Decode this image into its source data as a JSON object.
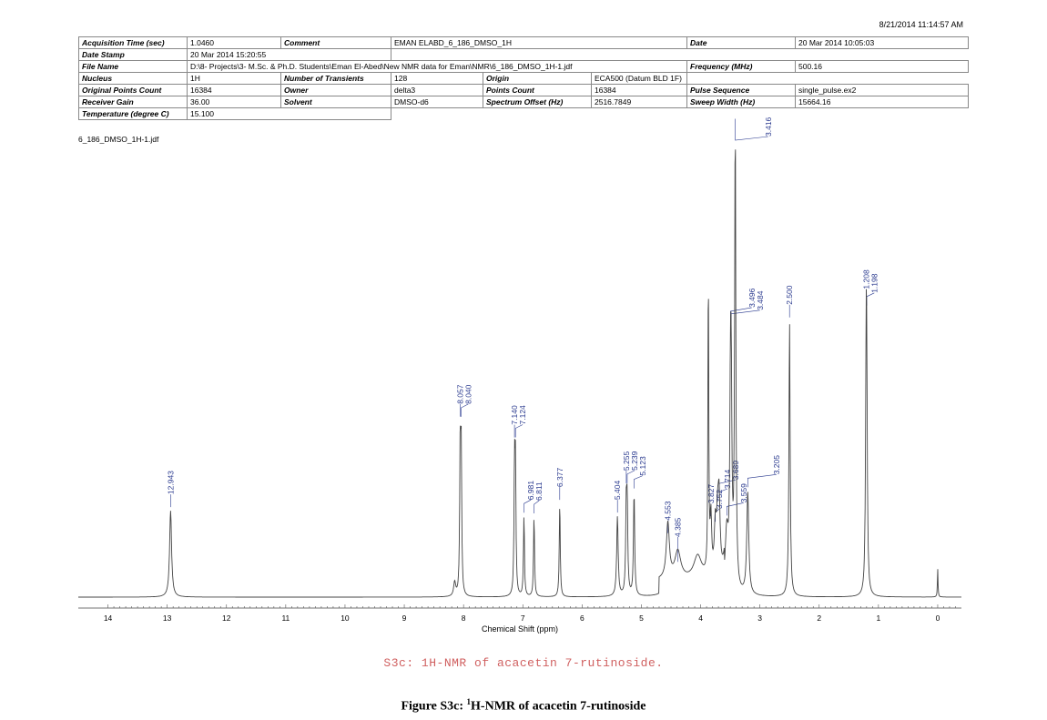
{
  "timestamp": "8/21/2014 11:14:57 AM",
  "params": {
    "acq_time_label": "Acquisition Time (sec)",
    "acq_time": "1.0460",
    "comment_label": "Comment",
    "comment": "EMAN ELABD_6_186_DMSO_1H",
    "date_label": "Date",
    "date": "20 Mar 2014 10:05:03",
    "date_stamp_label": "Date Stamp",
    "date_stamp": "20 Mar 2014 15:20:55",
    "file_name_label": "File Name",
    "file_name": "D:\\8- Projects\\3- M.Sc. & Ph.D. Students\\Eman El-Abed\\New NMR data for Eman\\NMR\\6_186_DMSO_1H-1.jdf",
    "frequency_label": "Frequency (MHz)",
    "frequency": "500.16",
    "nucleus_label": "Nucleus",
    "nucleus": "1H",
    "transients_label": "Number of Transients",
    "transients": "128",
    "origin_label": "Origin",
    "origin": "ECA500 (Datum BLD 1F)",
    "points_orig_label": "Original Points Count",
    "points_orig": "16384",
    "owner_label": "Owner",
    "owner": "delta3",
    "points_label": "Points Count",
    "points": "16384",
    "pulse_label": "Pulse Sequence",
    "pulse": "single_pulse.ex2",
    "gain_label": "Receiver Gain",
    "gain": "36.00",
    "solvent_label": "Solvent",
    "solvent": "DMSO-d6",
    "offset_label": "Spectrum Offset (Hz)",
    "offset": "2516.7849",
    "sweep_label": "Sweep Width (Hz)",
    "sweep": "15664.16",
    "temp_label": "Temperature (degree C)",
    "temp": "15.100"
  },
  "file_label": "6_186_DMSO_1H-1.jdf",
  "chart_data": {
    "type": "line",
    "xlabel": "Chemical Shift (ppm)",
    "xlim": [
      14.5,
      -0.4
    ],
    "x_reversed": true,
    "ticks": [
      "14",
      "13",
      "12",
      "11",
      "10",
      "9",
      "8",
      "7",
      "6",
      "5",
      "4",
      "3",
      "2",
      "1",
      "0"
    ],
    "grid": false,
    "peaks": [
      {
        "ppm": 12.943,
        "h": 0.185,
        "w": 0.02
      },
      {
        "ppm": 8.057,
        "h": 0.3,
        "w": 0.01
      },
      {
        "ppm": 8.04,
        "h": 0.3,
        "w": 0.01
      },
      {
        "ppm": 8.15,
        "h": 0.03,
        "w": 0.02
      },
      {
        "ppm": 7.14,
        "h": 0.26,
        "w": 0.01
      },
      {
        "ppm": 7.124,
        "h": 0.26,
        "w": 0.01
      },
      {
        "ppm": 6.981,
        "h": 0.17,
        "w": 0.01
      },
      {
        "ppm": 6.811,
        "h": 0.17,
        "w": 0.01
      },
      {
        "ppm": 6.377,
        "h": 0.2,
        "w": 0.01
      },
      {
        "ppm": 5.404,
        "h": 0.17,
        "w": 0.015
      },
      {
        "ppm": 5.255,
        "h": 0.17,
        "w": 0.012
      },
      {
        "ppm": 5.239,
        "h": 0.17,
        "w": 0.012
      },
      {
        "ppm": 5.123,
        "h": 0.22,
        "w": 0.012
      },
      {
        "ppm": 4.553,
        "h": 0.12,
        "w": 0.03
      },
      {
        "ppm": 4.385,
        "h": 0.06,
        "w": 0.06
      },
      {
        "ppm": 4.05,
        "h": 0.05,
        "w": 0.08
      },
      {
        "ppm": 3.827,
        "h": 0.12,
        "w": 0.015
      },
      {
        "ppm": 3.752,
        "h": 0.1,
        "w": 0.02
      },
      {
        "ppm": 3.714,
        "h": 0.1,
        "w": 0.02
      },
      {
        "ppm": 3.87,
        "h": 0.66,
        "w": 0.008
      },
      {
        "ppm": 3.689,
        "h": 0.15,
        "w": 0.02
      },
      {
        "ppm": 3.559,
        "h": 0.12,
        "w": 0.03
      },
      {
        "ppm": 3.496,
        "h": 0.34,
        "w": 0.015
      },
      {
        "ppm": 3.484,
        "h": 0.32,
        "w": 0.015
      },
      {
        "ppm": 3.416,
        "h": 0.98,
        "w": 0.012
      },
      {
        "ppm": 3.205,
        "h": 0.22,
        "w": 0.02
      },
      {
        "ppm": 2.5,
        "h": 0.59,
        "w": 0.012
      },
      {
        "ppm": 1.208,
        "h": 0.4,
        "w": 0.012
      },
      {
        "ppm": 1.198,
        "h": 0.38,
        "w": 0.012
      },
      {
        "ppm": 0.0,
        "h": 0.06,
        "w": 0.006
      }
    ],
    "peak_labels": [
      {
        "text": "12.943",
        "ppm": 12.943
      },
      {
        "text": "8.057",
        "ppm": 8.057
      },
      {
        "text": "8.040",
        "ppm": 8.04
      },
      {
        "text": "7.140",
        "ppm": 7.14
      },
      {
        "text": "7.124",
        "ppm": 7.124
      },
      {
        "text": "6.981",
        "ppm": 6.981
      },
      {
        "text": "6.811",
        "ppm": 6.811
      },
      {
        "text": "6.377",
        "ppm": 6.377
      },
      {
        "text": "5.404",
        "ppm": 5.404
      },
      {
        "text": "5.255",
        "ppm": 5.255
      },
      {
        "text": "5.239",
        "ppm": 5.239
      },
      {
        "text": "5.123",
        "ppm": 5.123
      },
      {
        "text": "4.553",
        "ppm": 4.553
      },
      {
        "text": "4.385",
        "ppm": 4.385
      },
      {
        "text": "3.827",
        "ppm": 3.827
      },
      {
        "text": "3.752",
        "ppm": 3.752
      },
      {
        "text": "3.714",
        "ppm": 3.714
      },
      {
        "text": "3.689",
        "ppm": 3.689
      },
      {
        "text": "3.559",
        "ppm": 3.559
      },
      {
        "text": "3.496",
        "ppm": 3.496
      },
      {
        "text": "3.484",
        "ppm": 3.484
      },
      {
        "text": "3.416",
        "ppm": 3.416
      },
      {
        "text": "3.205",
        "ppm": 3.205
      },
      {
        "text": "2.500",
        "ppm": 2.5
      },
      {
        "text": "1.208",
        "ppm": 1.208
      },
      {
        "text": "1.198",
        "ppm": 1.198
      }
    ],
    "colors": {
      "trace": "#444444",
      "label": "#2a3a8f"
    }
  },
  "subcaption": "S3c: 1H-NMR of acacetin 7-rutinoside.",
  "figcaption": {
    "prefix": "Figure S3c: ",
    "sup": "1",
    "rest": "H-NMR of acacetin 7-rutinoside"
  }
}
